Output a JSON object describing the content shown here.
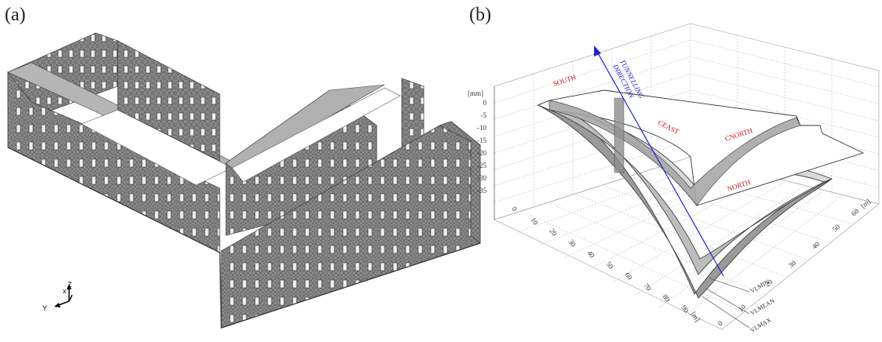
{
  "panels": {
    "a": {
      "label": "(a)"
    },
    "b": {
      "label": "(b)"
    }
  },
  "building_axes": {
    "x": "x",
    "y": "Y",
    "z": "Z"
  },
  "settlement_plot": {
    "z_unit": "[mm]",
    "z_ticks": [
      "0",
      "-5",
      "-10",
      "-15",
      "-20",
      "-25",
      "-30",
      "-35"
    ],
    "x_unit": "[m]",
    "x_ticks": [
      "0",
      "10",
      "20",
      "30",
      "40",
      "50",
      "60",
      "70",
      "80",
      "90"
    ],
    "y_unit": "[m]",
    "y_ticks": [
      "0",
      "10",
      "20",
      "30",
      "40",
      "50",
      "60"
    ],
    "regions": [
      "SOUTH",
      "CEAST",
      "CNORTH",
      "NORTH"
    ],
    "direction_label_line1": "TUNNELLING",
    "direction_label_line2": "DIRECTION",
    "curves": [
      "VLMIN",
      "VLMEAN",
      "VLMAX"
    ]
  }
}
